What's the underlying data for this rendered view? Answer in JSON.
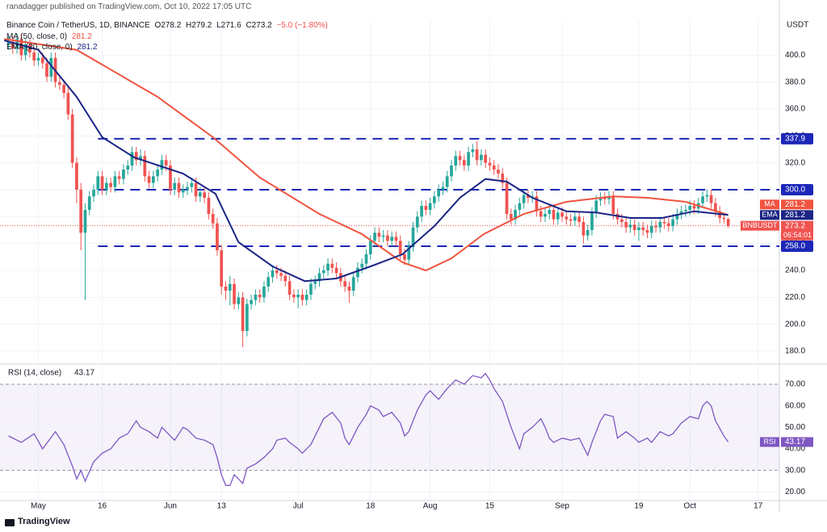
{
  "header": {
    "publisher": "ranadagger published on TradingView.com, Oct 10, 2022 17:05 UTC",
    "symbol": "Binance Coin / TetherUS, 1D, BINANCE",
    "ohlc": [
      "O278.2",
      "H279.2",
      "L271.6",
      "C273.2"
    ],
    "change": "−5.0 (−1.80%)",
    "ma_legend": "MA (50, close, 0)",
    "ema_legend": "EMA (20, close, 0)"
  },
  "footer": "TradingView",
  "chart_data": [
    {
      "type": "candlestick",
      "currency": "USDT",
      "symbol": "BNBUSDT",
      "countdown": "06:54:01",
      "up_color": "#26a69a",
      "down_color": "#ef5350",
      "xlim": [
        -8,
        175
      ],
      "xticks": [
        {
          "value": 1,
          "label": "May"
        },
        16,
        {
          "value": 32,
          "label": "Jun"
        },
        {
          "value": 44,
          "label": "13"
        },
        {
          "value": 62,
          "label": "Jul"
        },
        {
          "value": 79,
          "label": "18"
        },
        {
          "value": 93,
          "label": "Aug"
        },
        {
          "value": 107,
          "label": "15"
        },
        {
          "value": 124,
          "label": "Sep"
        },
        {
          "value": 142,
          "label": "19"
        },
        {
          "value": 154,
          "label": "Oct"
        },
        {
          "value": 170,
          "label": "17"
        }
      ],
      "ylim": [
        171,
        426
      ],
      "yticks": [
        {
          "value": 180,
          "label": "180.0"
        },
        {
          "value": 200,
          "label": "200.0"
        },
        {
          "value": 220,
          "label": "220.0"
        },
        {
          "value": 240,
          "label": "240.0"
        },
        {
          "value": 260,
          "label": "260.0"
        },
        {
          "value": 280,
          "label": "280.0"
        },
        {
          "value": 300,
          "label": "300.0"
        },
        {
          "value": 320,
          "label": "320.0"
        },
        {
          "value": 340,
          "label": "340.0"
        },
        {
          "value": 360,
          "label": "360.0"
        },
        {
          "value": 380,
          "label": "380.0"
        },
        {
          "value": 400,
          "label": "400.0"
        }
      ],
      "levels": [
        337.9,
        {
          "value": 300,
          "label": "300.0"
        },
        {
          "value": 258,
          "label": "258.0"
        }
      ],
      "level_color": "#1c27b8",
      "x": [
        -6,
        -5,
        -4,
        -3,
        -2,
        -1,
        0,
        1,
        2,
        3,
        4,
        5,
        6,
        7,
        8,
        9,
        10,
        11,
        12,
        13,
        14,
        15,
        16,
        17,
        18,
        19,
        20,
        21,
        22,
        23,
        24,
        25,
        26,
        27,
        28,
        29,
        30,
        31,
        32,
        33,
        34,
        35,
        36,
        37,
        38,
        39,
        40,
        41,
        42,
        43,
        44,
        45,
        46,
        47,
        48,
        49,
        50,
        51,
        52,
        53,
        54,
        55,
        56,
        57,
        58,
        59,
        60,
        61,
        62,
        63,
        64,
        65,
        66,
        67,
        68,
        69,
        70,
        71,
        72,
        73,
        74,
        75,
        76,
        77,
        78,
        79,
        80,
        81,
        82,
        83,
        84,
        85,
        86,
        87,
        88,
        89,
        90,
        91,
        92,
        93,
        94,
        95,
        96,
        97,
        98,
        99,
        100,
        101,
        102,
        103,
        104,
        105,
        106,
        107,
        108,
        109,
        110,
        111,
        112,
        113,
        114,
        115,
        116,
        117,
        118,
        119,
        120,
        121,
        122,
        123,
        124,
        125,
        126,
        127,
        128,
        129,
        130,
        131,
        132,
        133,
        134,
        135,
        136,
        137,
        138,
        139,
        140,
        141,
        142,
        143,
        144,
        145,
        146,
        147,
        148,
        149,
        150,
        151,
        152,
        153,
        154,
        155,
        156,
        157,
        158,
        159,
        160,
        161,
        162,
        163
      ],
      "open": [
        408,
        410,
        405,
        412,
        400,
        408,
        402,
        396,
        398,
        394,
        384,
        398,
        380,
        378,
        372,
        356,
        320,
        300,
        268,
        285,
        295,
        300,
        310,
        300,
        305,
        302,
        310,
        308,
        315,
        318,
        328,
        322,
        325,
        310,
        305,
        310,
        315,
        322,
        318,
        300,
        305,
        298,
        300,
        302,
        305,
        295,
        298,
        294,
        282,
        275,
        255,
        228,
        225,
        230,
        215,
        220,
        195,
        215,
        218,
        222,
        220,
        228,
        235,
        240,
        238,
        236,
        232,
        222,
        220,
        222,
        218,
        222,
        230,
        232,
        238,
        240,
        245,
        242,
        238,
        232,
        228,
        225,
        235,
        242,
        245,
        252,
        262,
        268,
        265,
        266,
        262,
        265,
        262,
        252,
        248,
        258,
        272,
        280,
        288,
        285,
        290,
        295,
        300,
        302,
        310,
        318,
        325,
        322,
        318,
        328,
        330,
        322,
        326,
        320,
        318,
        315,
        312,
        305,
        282,
        278,
        285,
        290,
        296,
        294,
        295,
        284,
        280,
        282,
        285,
        278,
        283,
        280,
        278,
        277,
        280,
        276,
        266,
        270,
        283,
        292,
        294,
        293,
        295,
        282,
        278,
        276,
        272,
        274,
        270,
        272,
        270,
        268,
        273,
        272,
        276,
        275,
        273,
        278,
        282,
        284,
        285,
        288,
        286,
        290,
        295,
        296,
        290,
        284,
        279,
        278.2
      ],
      "high": [
        414,
        414,
        416,
        416,
        412,
        412,
        406,
        402,
        402,
        398,
        402,
        402,
        384,
        382,
        376,
        360,
        324,
        305,
        290,
        299,
        304,
        314,
        314,
        309,
        309,
        314,
        314,
        319,
        322,
        332,
        332,
        330,
        329,
        314,
        314,
        319,
        326,
        326,
        322,
        309,
        309,
        304,
        306,
        309,
        309,
        302,
        302,
        298,
        286,
        279,
        259,
        232,
        236,
        234,
        224,
        224,
        219,
        222,
        226,
        226,
        232,
        239,
        244,
        244,
        242,
        240,
        236,
        226,
        226,
        226,
        226,
        234,
        236,
        242,
        244,
        249,
        249,
        246,
        242,
        236,
        232,
        239,
        246,
        249,
        256,
        266,
        272,
        272,
        270,
        270,
        269,
        269,
        266,
        256,
        262,
        276,
        284,
        292,
        292,
        294,
        299,
        304,
        306,
        314,
        322,
        329,
        329,
        326,
        332,
        334,
        336,
        330,
        330,
        324,
        322,
        319,
        316,
        309,
        286,
        289,
        294,
        300,
        300,
        299,
        299,
        288,
        286,
        289,
        289,
        287,
        287,
        284,
        282,
        284,
        284,
        280,
        274,
        287,
        296,
        298,
        298,
        299,
        299,
        286,
        282,
        280,
        278,
        278,
        276,
        276,
        274,
        277,
        277,
        280,
        280,
        279,
        282,
        286,
        288,
        289,
        292,
        292,
        294,
        299,
        300,
        300,
        294,
        288,
        283,
        279.2
      ],
      "low": [
        404,
        401,
        401,
        396,
        396,
        398,
        392,
        392,
        390,
        380,
        380,
        376,
        374,
        368,
        352,
        316,
        290,
        255,
        218,
        281,
        291,
        296,
        296,
        296,
        298,
        298,
        304,
        304,
        311,
        314,
        318,
        318,
        306,
        301,
        301,
        306,
        311,
        314,
        296,
        296,
        294,
        294,
        296,
        298,
        291,
        291,
        290,
        278,
        271,
        251,
        222,
        218,
        214,
        211,
        211,
        183,
        191,
        211,
        214,
        216,
        216,
        224,
        231,
        234,
        232,
        228,
        218,
        216,
        212,
        214,
        214,
        218,
        226,
        228,
        234,
        236,
        238,
        234,
        228,
        224,
        216,
        221,
        231,
        238,
        241,
        248,
        258,
        261,
        261,
        258,
        258,
        258,
        248,
        244,
        244,
        254,
        268,
        276,
        281,
        281,
        286,
        291,
        296,
        298,
        306,
        314,
        318,
        314,
        314,
        324,
        318,
        318,
        316,
        314,
        311,
        308,
        301,
        278,
        274,
        274,
        281,
        286,
        290,
        290,
        280,
        276,
        276,
        278,
        274,
        274,
        276,
        274,
        273,
        273,
        272,
        260,
        262,
        266,
        279,
        288,
        289,
        289,
        278,
        274,
        272,
        268,
        268,
        266,
        262,
        266,
        264,
        264,
        268,
        268,
        271,
        269,
        269,
        274,
        278,
        280,
        281,
        282,
        282,
        286,
        291,
        286,
        280,
        275,
        275,
        271.6
      ],
      "close": [
        410,
        405,
        412,
        400,
        408,
        402,
        396,
        398,
        394,
        384,
        398,
        380,
        378,
        372,
        356,
        320,
        300,
        268,
        285,
        295,
        300,
        310,
        300,
        305,
        302,
        310,
        308,
        315,
        318,
        328,
        322,
        325,
        310,
        305,
        310,
        315,
        322,
        318,
        300,
        305,
        298,
        300,
        302,
        305,
        295,
        298,
        294,
        282,
        275,
        255,
        228,
        225,
        230,
        215,
        220,
        195,
        215,
        218,
        222,
        220,
        228,
        235,
        240,
        238,
        236,
        232,
        222,
        220,
        222,
        218,
        222,
        230,
        232,
        238,
        240,
        245,
        242,
        238,
        232,
        228,
        225,
        235,
        242,
        245,
        252,
        262,
        268,
        265,
        266,
        262,
        265,
        262,
        252,
        248,
        258,
        272,
        280,
        288,
        285,
        290,
        295,
        300,
        302,
        310,
        318,
        325,
        322,
        318,
        328,
        330,
        322,
        326,
        320,
        318,
        315,
        312,
        305,
        282,
        278,
        285,
        290,
        296,
        294,
        295,
        284,
        280,
        282,
        285,
        278,
        283,
        280,
        278,
        277,
        280,
        276,
        266,
        270,
        283,
        292,
        294,
        293,
        295,
        282,
        278,
        276,
        272,
        274,
        270,
        272,
        270,
        268,
        273,
        272,
        276,
        275,
        273,
        278,
        282,
        284,
        285,
        288,
        286,
        290,
        295,
        296,
        290,
        284,
        279,
        278.2,
        273.2
      ],
      "overlays": [
        {
          "name": "MA",
          "color": "#f0533f",
          "x": [
            -7,
            10,
            29,
            42,
            53,
            67,
            77,
            86.5,
            92,
            98,
            105.6,
            115,
            125,
            136,
            144,
            153,
            163
          ],
          "values": [
            412,
            404,
            369,
            339,
            309,
            282,
            267,
            246,
            240,
            249,
            267,
            282,
            291,
            295,
            294,
            291,
            281.2
          ]
        },
        {
          "name": "EMA",
          "color": "#1b2585",
          "x": [
            -7,
            1,
            10,
            16,
            23.5,
            35,
            42.6,
            48,
            56,
            63.6,
            71,
            79,
            86.5,
            94,
            100,
            106,
            111,
            117,
            125,
            132,
            140,
            147.5,
            155,
            163
          ],
          "values": [
            411,
            404,
            369,
            339,
            324,
            312,
            297,
            261,
            243,
            232,
            234,
            243,
            252,
            273,
            294,
            308,
            306,
            294,
            284,
            283,
            279,
            279,
            284,
            281.2
          ]
        }
      ]
    },
    {
      "type": "line",
      "title": "RSI (14, close)",
      "ylim": [
        16,
        79
      ],
      "yticks": [
        {
          "value": 20,
          "label": "20.00"
        },
        {
          "value": 30,
          "label": "30.00"
        },
        {
          "value": 40,
          "label": "40.00"
        },
        {
          "value": 50,
          "label": "50.00"
        },
        {
          "value": 60,
          "label": "60.00"
        },
        {
          "value": 70,
          "label": "70.00"
        }
      ],
      "band": [
        30,
        70
      ],
      "series": [
        {
          "name": "RSI",
          "color": "#7e57c2",
          "x": [
            -6,
            -3,
            0,
            2,
            5,
            7,
            9,
            10,
            11,
            12,
            14,
            16,
            18,
            20,
            22,
            24,
            25,
            27,
            29,
            30,
            31,
            33,
            35,
            36,
            38,
            40,
            42,
            43,
            44,
            45,
            46,
            47,
            48,
            49,
            50,
            52,
            54,
            56,
            57,
            59,
            60,
            62,
            63,
            65,
            67,
            68,
            70,
            72,
            73,
            74,
            76,
            78,
            79,
            81,
            82,
            84,
            86,
            87,
            88,
            90,
            92,
            93,
            95,
            97,
            99,
            101,
            103,
            105,
            106,
            107,
            108,
            110,
            112,
            113,
            114,
            115,
            117,
            119,
            120,
            121,
            122,
            124,
            126,
            128,
            130,
            131,
            133,
            134,
            136,
            137,
            139,
            141,
            142,
            144,
            145,
            147,
            149,
            150,
            152,
            154,
            156,
            157,
            158,
            159,
            160,
            162,
            163
          ],
          "values": [
            46,
            43,
            47,
            40,
            48,
            42,
            32,
            26,
            30,
            25,
            34,
            38,
            40,
            45,
            47,
            53,
            50,
            48,
            45,
            50,
            48,
            44,
            50,
            49,
            45,
            44,
            42,
            36,
            28,
            23,
            23,
            28,
            26,
            24,
            31,
            33,
            36,
            40,
            44,
            45,
            43,
            40,
            38,
            42,
            50,
            54,
            57,
            52,
            45,
            42,
            50,
            56,
            60,
            58,
            55,
            57,
            52,
            46,
            48,
            58,
            65,
            67,
            63,
            68,
            72,
            70,
            74,
            73,
            75,
            72,
            68,
            62,
            50,
            45,
            40,
            47,
            50,
            54,
            50,
            45,
            43,
            45,
            44,
            45,
            37,
            43,
            53,
            56,
            55,
            45,
            48,
            45,
            43,
            45,
            43,
            48,
            46,
            47,
            52,
            55,
            54,
            60,
            62,
            60,
            53,
            46,
            43.17
          ]
        }
      ]
    }
  ]
}
